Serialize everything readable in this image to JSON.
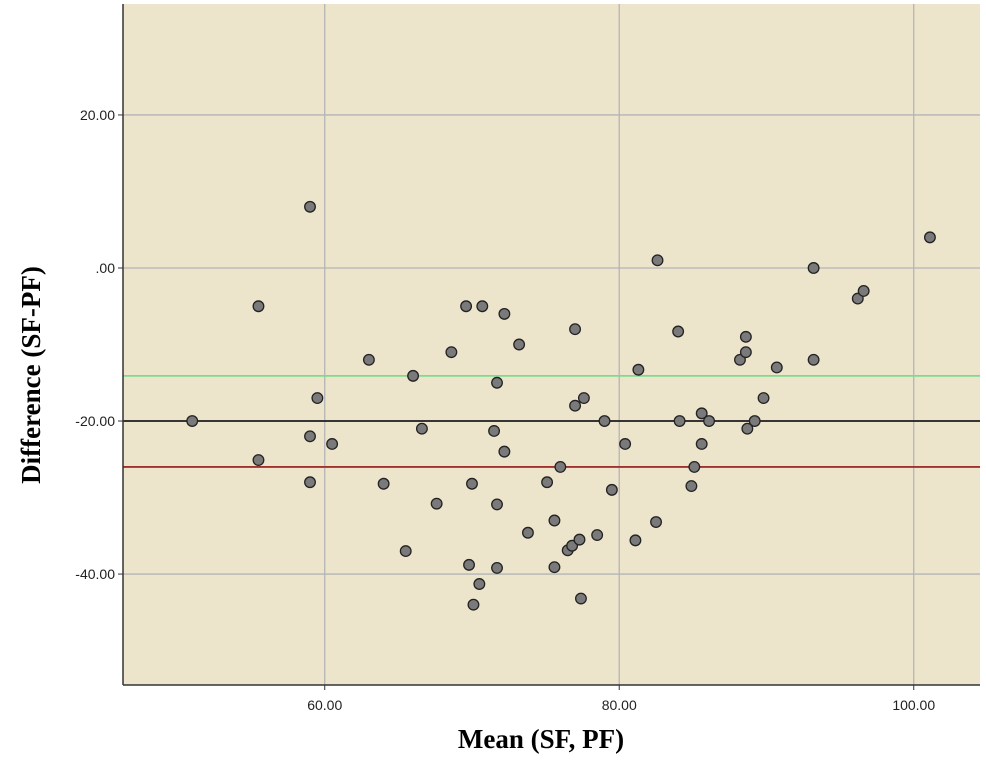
{
  "chart_data": {
    "type": "scatter",
    "title": "",
    "xlabel": "Mean (SF, PF)",
    "ylabel": "Difference (SF-PF)",
    "xlim": [
      46.3,
      104.5
    ],
    "ylim": [
      -54.5,
      34.5
    ],
    "x_ticks": [
      60,
      80,
      100
    ],
    "x_tick_labels": [
      "60.00",
      "80.00",
      "100.00"
    ],
    "y_ticks": [
      20,
      0,
      -20,
      -40
    ],
    "y_tick_labels": [
      "20.00",
      ".00",
      "-20.00",
      "-40.00"
    ],
    "grid": true,
    "colors": {
      "plot_background": "#ede4cc",
      "grid": "#b4b4b4",
      "point_fill": "#7a7a7a",
      "point_stroke": "#222222",
      "upper_line": "#7ddc8c",
      "mean_line": "#1e1e1e",
      "lower_line": "#a0322d"
    },
    "reference_lines": [
      {
        "y": -14.1,
        "color": "#7ddc8c"
      },
      {
        "y": -20.0,
        "color": "#1e1e1e"
      },
      {
        "y": -26.0,
        "color": "#a0322d"
      }
    ],
    "points": [
      {
        "x": 51.0,
        "y": -20.0
      },
      {
        "x": 55.5,
        "y": -5.0
      },
      {
        "x": 55.5,
        "y": -25.1
      },
      {
        "x": 59.0,
        "y": 8.0
      },
      {
        "x": 59.0,
        "y": -22.0
      },
      {
        "x": 59.0,
        "y": -28.0
      },
      {
        "x": 59.5,
        "y": -17.0
      },
      {
        "x": 60.5,
        "y": -23.0
      },
      {
        "x": 63.0,
        "y": -12.0
      },
      {
        "x": 64.0,
        "y": -28.2
      },
      {
        "x": 65.5,
        "y": -37.0
      },
      {
        "x": 66.0,
        "y": -14.1
      },
      {
        "x": 66.6,
        "y": -21.0
      },
      {
        "x": 67.6,
        "y": -30.8
      },
      {
        "x": 68.6,
        "y": -11.0
      },
      {
        "x": 69.6,
        "y": -5.0
      },
      {
        "x": 69.8,
        "y": -38.8
      },
      {
        "x": 70.0,
        "y": -28.2
      },
      {
        "x": 70.1,
        "y": -44.0
      },
      {
        "x": 70.5,
        "y": -41.3
      },
      {
        "x": 70.7,
        "y": -5.0
      },
      {
        "x": 71.5,
        "y": -21.3
      },
      {
        "x": 71.7,
        "y": -15.0
      },
      {
        "x": 71.7,
        "y": -30.9
      },
      {
        "x": 71.7,
        "y": -39.2
      },
      {
        "x": 72.2,
        "y": -6.0
      },
      {
        "x": 72.2,
        "y": -24.0
      },
      {
        "x": 73.2,
        "y": -10.0
      },
      {
        "x": 73.8,
        "y": -34.6
      },
      {
        "x": 75.1,
        "y": -28.0
      },
      {
        "x": 75.6,
        "y": -33.0
      },
      {
        "x": 75.6,
        "y": -39.1
      },
      {
        "x": 76.0,
        "y": -26.0
      },
      {
        "x": 76.5,
        "y": -36.9
      },
      {
        "x": 76.8,
        "y": -36.3
      },
      {
        "x": 77.0,
        "y": -8.0
      },
      {
        "x": 77.0,
        "y": -18.0
      },
      {
        "x": 77.3,
        "y": -35.5
      },
      {
        "x": 77.4,
        "y": -43.2
      },
      {
        "x": 77.6,
        "y": -17.0
      },
      {
        "x": 78.5,
        "y": -34.9
      },
      {
        "x": 79.0,
        "y": -20.0
      },
      {
        "x": 79.5,
        "y": -29.0
      },
      {
        "x": 80.4,
        "y": -23.0
      },
      {
        "x": 81.1,
        "y": -35.6
      },
      {
        "x": 81.3,
        "y": -13.3
      },
      {
        "x": 82.5,
        "y": -33.2
      },
      {
        "x": 82.6,
        "y": 1.0
      },
      {
        "x": 84.0,
        "y": -8.3
      },
      {
        "x": 84.1,
        "y": -20.0
      },
      {
        "x": 84.9,
        "y": -28.5
      },
      {
        "x": 85.1,
        "y": -26.0
      },
      {
        "x": 85.6,
        "y": -19.0
      },
      {
        "x": 85.6,
        "y": -23.0
      },
      {
        "x": 86.1,
        "y": -20.0
      },
      {
        "x": 88.2,
        "y": -12.0
      },
      {
        "x": 88.6,
        "y": -9.0
      },
      {
        "x": 88.6,
        "y": -11.0
      },
      {
        "x": 88.7,
        "y": -21.0
      },
      {
        "x": 89.2,
        "y": -20.0
      },
      {
        "x": 89.8,
        "y": -17.0
      },
      {
        "x": 90.7,
        "y": -13.0
      },
      {
        "x": 93.2,
        "y": 0.0
      },
      {
        "x": 93.2,
        "y": -12.0
      },
      {
        "x": 96.2,
        "y": -4.0
      },
      {
        "x": 96.6,
        "y": -3.0
      },
      {
        "x": 101.1,
        "y": 4.0
      }
    ]
  }
}
